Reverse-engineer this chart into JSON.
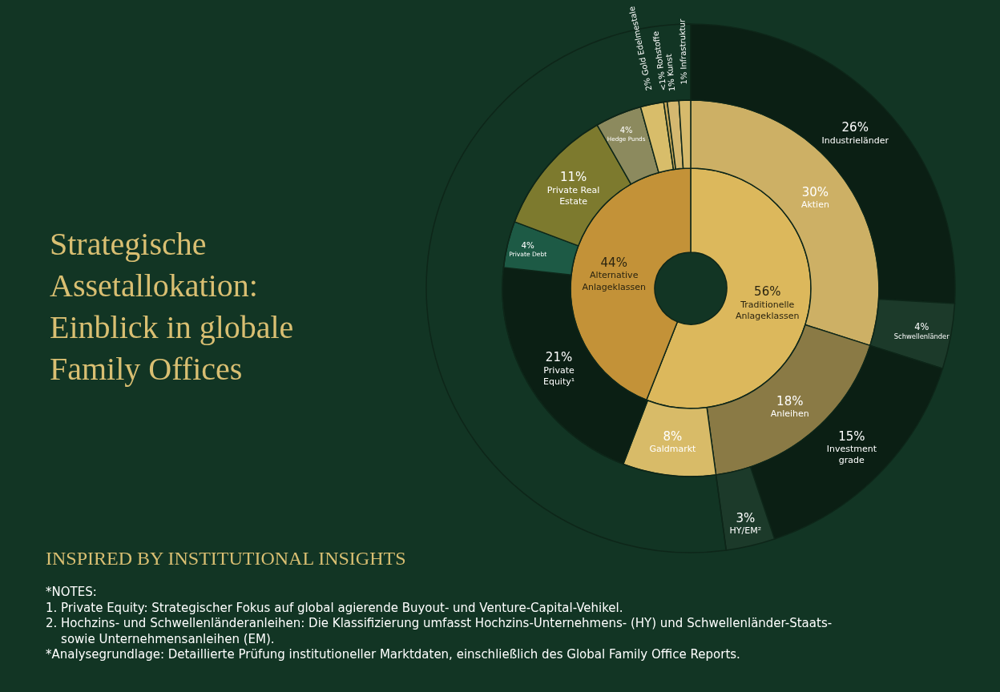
{
  "chart_data": [
    {
      "type": "donut",
      "title": "Strategische Assetallokation: Einblick in globale Family Offices",
      "subtitle": "INSPIRED BY INSTITUTIONAL INSIGHTS",
      "annotations": [
        "*NOTES:",
        "1. Private Equity: Strategischer Fokus auf global agierende Buyout- und Venture-Capital-Vehikel.",
        "2. Hochzins- und Schwellenländeranleihen: Die Klassifizierung umfasst Hochzins-Unternehmens- (HY) und Schwellenländer-Staats- sowie Unternehmensanleihen (EM).",
        "*Analysegrundlage: Detaillierte Prüfung institutioneller Marktdaten, einschließlich des Global Family Office Reports."
      ],
      "categories": [
        "Traditionelle Anlageklassen",
        "Alternative Anlageklassen"
      ],
      "values": [
        56,
        44
      ],
      "value_labels": [
        "56%",
        "44%"
      ],
      "colors": [
        "#dcb85c",
        "#c39238"
      ]
    },
    {
      "type": "donut",
      "categories": [
        "Aktien",
        "Anleihen",
        "Galdmarkt",
        "Private Equity¹",
        "Private Debt",
        "Private Real Estate",
        "Hedge Punds",
        "Gold Edelmestale",
        "Rohstoffe",
        "Kunst",
        "Infrastruktur"
      ],
      "values": [
        30,
        18,
        8,
        21,
        4,
        11,
        4,
        2,
        0.3,
        1,
        1
      ],
      "value_labels": [
        "30%",
        "18%",
        "8%",
        "21%",
        "4%",
        "11%",
        "4%",
        "2%",
        "<1%",
        "1%",
        "1%"
      ],
      "colors": [
        "#cdb065",
        "#8a7a45",
        "#d8bb68",
        "#0b1f14",
        "#1d5a45",
        "#7d7a2e",
        "#8c8a5e",
        "#d8bd6a",
        "#c8a85a",
        "#d4b870",
        "#d6ba6c"
      ]
    },
    {
      "type": "donut",
      "categories": [
        "Industrieländer",
        "Schwellenländer",
        "Investment grade",
        "HY/EM²"
      ],
      "values": [
        26,
        4,
        15,
        3
      ],
      "value_labels": [
        "26%",
        "4%",
        "15%",
        "3%"
      ],
      "colors": [
        "#0b1f14",
        "#1c3a2a",
        "#0b1f14",
        "#1c3a2a"
      ]
    }
  ]
}
